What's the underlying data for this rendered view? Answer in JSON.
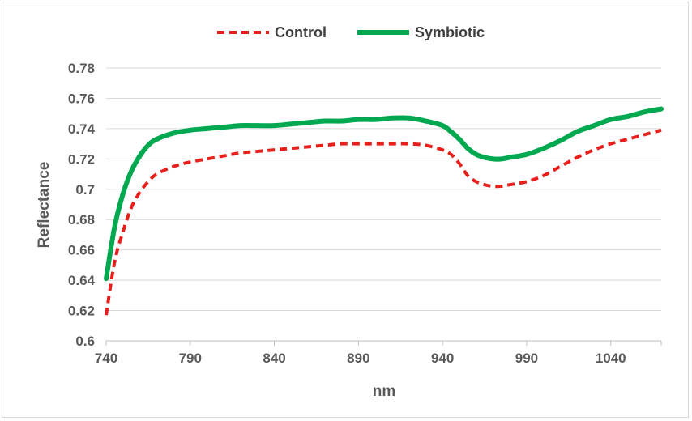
{
  "chart_data": {
    "type": "line",
    "title": "",
    "xlabel": "nm",
    "ylabel": "Reflectance",
    "xlim": [
      740,
      1070
    ],
    "ylim": [
      0.6,
      0.78
    ],
    "x_ticks": [
      "740",
      "790",
      "840",
      "890",
      "940",
      "990",
      "1040"
    ],
    "y_ticks": [
      "0.6",
      "0.62",
      "0.64",
      "0.66",
      "0.68",
      "0.7",
      "0.72",
      "0.74",
      "0.76",
      "0.78"
    ],
    "grid": "horizontal",
    "legend": "top",
    "x": [
      740,
      745,
      750,
      755,
      760,
      765,
      770,
      780,
      790,
      800,
      810,
      820,
      830,
      840,
      850,
      860,
      870,
      880,
      890,
      900,
      910,
      920,
      930,
      940,
      945,
      950,
      955,
      960,
      965,
      970,
      975,
      980,
      990,
      1000,
      1010,
      1020,
      1030,
      1040,
      1050,
      1060,
      1070
    ],
    "series": [
      {
        "name": "Control",
        "color": "#e8201c",
        "style": "dashed",
        "values": [
          0.617,
          0.652,
          0.672,
          0.688,
          0.698,
          0.705,
          0.71,
          0.715,
          0.718,
          0.72,
          0.722,
          0.724,
          0.725,
          0.726,
          0.727,
          0.728,
          0.729,
          0.73,
          0.73,
          0.73,
          0.73,
          0.73,
          0.729,
          0.726,
          0.723,
          0.717,
          0.709,
          0.705,
          0.703,
          0.702,
          0.702,
          0.703,
          0.705,
          0.709,
          0.715,
          0.721,
          0.726,
          0.73,
          0.733,
          0.736,
          0.739
        ]
      },
      {
        "name": "Symbiotic",
        "color": "#00a84f",
        "style": "solid",
        "values": [
          0.641,
          0.675,
          0.697,
          0.712,
          0.722,
          0.729,
          0.733,
          0.737,
          0.739,
          0.74,
          0.741,
          0.742,
          0.742,
          0.742,
          0.743,
          0.744,
          0.745,
          0.745,
          0.746,
          0.746,
          0.747,
          0.747,
          0.745,
          0.742,
          0.738,
          0.733,
          0.727,
          0.723,
          0.721,
          0.72,
          0.72,
          0.721,
          0.723,
          0.727,
          0.732,
          0.738,
          0.742,
          0.746,
          0.748,
          0.751,
          0.753
        ]
      }
    ]
  }
}
